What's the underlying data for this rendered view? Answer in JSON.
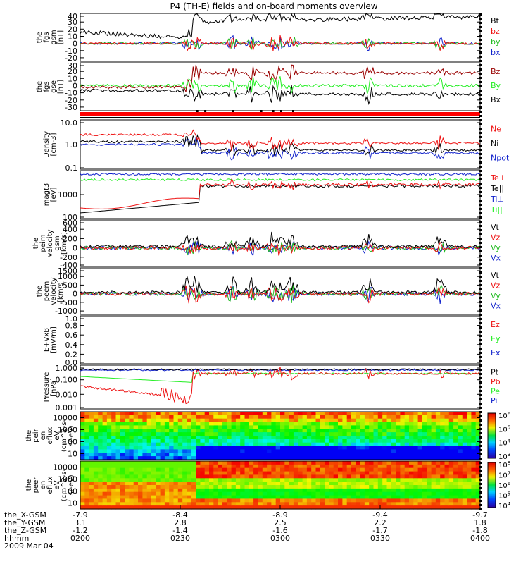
{
  "title": "P4 (TH-E) fields and on-board moments overview",
  "colors": {
    "black": "#000000",
    "red": "#ee1111",
    "green": "#22ee22",
    "blue": "#1122cc",
    "brown": "#990000"
  },
  "chart_data": {
    "type": "line",
    "x_axis": {
      "ticks": [
        "0200",
        "0230",
        "0300",
        "0330",
        "0400"
      ],
      "rows": [
        {
          "label": "the_X-GSM",
          "values": [
            "-7.9",
            "-8.4",
            "-8.9",
            "-9.4",
            "-9.7"
          ]
        },
        {
          "label": "the_Y-GSM",
          "values": [
            "3.1",
            "2.8",
            "2.5",
            "2.2",
            "1.8"
          ]
        },
        {
          "label": "the_Z-GSM",
          "values": [
            "-1.2",
            "-1.4",
            "-1.6",
            "-1.7",
            "-1.8"
          ]
        },
        {
          "label": "hhmm",
          "values": [
            "0200",
            "0230",
            "0300",
            "0330",
            "0400"
          ]
        }
      ],
      "date": "2009 Mar 04"
    },
    "panels": [
      {
        "id": "p1",
        "ylabel": [
          "the",
          "fgs",
          "gsm",
          "[nT]"
        ],
        "ticks": [
          "40",
          "30",
          "20",
          "10",
          "0",
          "-10",
          "-20"
        ],
        "ylim": [
          -25,
          42
        ],
        "scale": "linear",
        "legend": [
          {
            "name": "Bt",
            "color": "#000000"
          },
          {
            "name": "bz",
            "color": "#ee1111"
          },
          {
            "name": "by",
            "color": "#22bb22"
          },
          {
            "name": "bx",
            "color": "#1122cc"
          }
        ]
      },
      {
        "id": "p2",
        "ylabel": [
          "the",
          "fgs",
          "gse",
          "[nT]"
        ],
        "ticks": [
          "30",
          "20",
          "10",
          "0",
          "-10",
          "-20",
          "-30"
        ],
        "ylim": [
          -35,
          32
        ],
        "scale": "linear",
        "legend": [
          {
            "name": "Bz",
            "color": "#990000"
          },
          {
            "name": "By",
            "color": "#22ee22"
          },
          {
            "name": "Bx",
            "color": "#000000"
          }
        ]
      },
      {
        "id": "p3",
        "ylabel": [
          "Density",
          "[cm-3]"
        ],
        "ticks": [
          "10.0",
          "1.0",
          "0.1"
        ],
        "ylim": [
          0.1,
          10
        ],
        "scale": "log",
        "legend": [
          {
            "name": "Ne",
            "color": "#ee1111"
          },
          {
            "name": "Ni",
            "color": "#000000"
          },
          {
            "name": "Npot",
            "color": "#1122cc"
          }
        ]
      },
      {
        "id": "p4",
        "ylabel": [
          "magt3",
          "[eV]"
        ],
        "ticks": [
          "1000",
          "100"
        ],
        "ylim": [
          100,
          10000
        ],
        "scale": "log",
        "legend": [
          {
            "name": "Te⊥",
            "color": "#ee1111"
          },
          {
            "name": "Te||",
            "color": "#000000"
          },
          {
            "name": "Ti⊥",
            "color": "#1122cc"
          },
          {
            "name": "Ti||",
            "color": "#22ee22"
          }
        ]
      },
      {
        "id": "p5",
        "ylabel": [
          "the",
          "peim",
          "velocity",
          "gsm",
          "[km/s]"
        ],
        "ticks": [
          "600",
          "400",
          "200",
          "0",
          "-200",
          "-400"
        ],
        "ylim": [
          -400,
          600
        ],
        "scale": "linear",
        "legend": [
          {
            "name": "Vt",
            "color": "#000000"
          },
          {
            "name": "Vz",
            "color": "#ee1111"
          },
          {
            "name": "Vy",
            "color": "#22bb22"
          },
          {
            "name": "Vx",
            "color": "#1122cc"
          }
        ]
      },
      {
        "id": "p6",
        "ylabel": [
          "the",
          "peem",
          "velocity",
          "[km/s]"
        ],
        "ticks": [
          "1500",
          "1000",
          "500",
          "0",
          "-500",
          "-1000"
        ],
        "ylim": [
          -1200,
          1500
        ],
        "scale": "linear",
        "legend": [
          {
            "name": "Vt",
            "color": "#000000"
          },
          {
            "name": "Vz",
            "color": "#ee1111"
          },
          {
            "name": "Vy",
            "color": "#22bb22"
          },
          {
            "name": "Vx",
            "color": "#1122cc"
          }
        ]
      },
      {
        "id": "p7",
        "ylabel": [
          "E+VxB",
          "[mV/m]"
        ],
        "ticks": [
          "1.0",
          "0.8",
          "0.6",
          "0.4",
          "0.2",
          "0.0"
        ],
        "ylim": [
          0,
          1
        ],
        "scale": "linear",
        "legend": [
          {
            "name": "Ez",
            "color": "#ee1111"
          },
          {
            "name": "Ey",
            "color": "#22ee22"
          },
          {
            "name": "Ex",
            "color": "#1122cc"
          }
        ]
      },
      {
        "id": "p8",
        "ylabel": [
          "Pressure",
          "[nPa]"
        ],
        "ticks": [
          "1.000",
          "0.100",
          "0.010",
          "0.001"
        ],
        "ylim": [
          0.001,
          1
        ],
        "scale": "log",
        "legend": [
          {
            "name": "Pt",
            "color": "#000000"
          },
          {
            "name": "Pb",
            "color": "#ee1111"
          },
          {
            "name": "Pe",
            "color": "#22ee22"
          },
          {
            "name": "Pi",
            "color": "#1122cc"
          }
        ]
      },
      {
        "id": "p9",
        "ylabel": [
          "the",
          "peir",
          "en",
          "eflux",
          "eV",
          "(cm^2-s-",
          "sr-eV)"
        ],
        "ticks": [
          "10000",
          "1000",
          "100",
          "10"
        ],
        "scale": "log",
        "colorbar": [
          "10^6",
          "10^5",
          "10^4",
          "10^3"
        ]
      },
      {
        "id": "p10",
        "ylabel": [
          "the",
          "peer",
          "en",
          "eflux",
          "eV",
          "(cm^2-s-",
          "sr-eV)"
        ],
        "ticks": [
          "10000",
          "1000",
          "100",
          "10"
        ],
        "scale": "log",
        "colorbar": [
          "10^8",
          "10^7",
          "10^6",
          "10^5",
          "10^4"
        ]
      }
    ]
  }
}
